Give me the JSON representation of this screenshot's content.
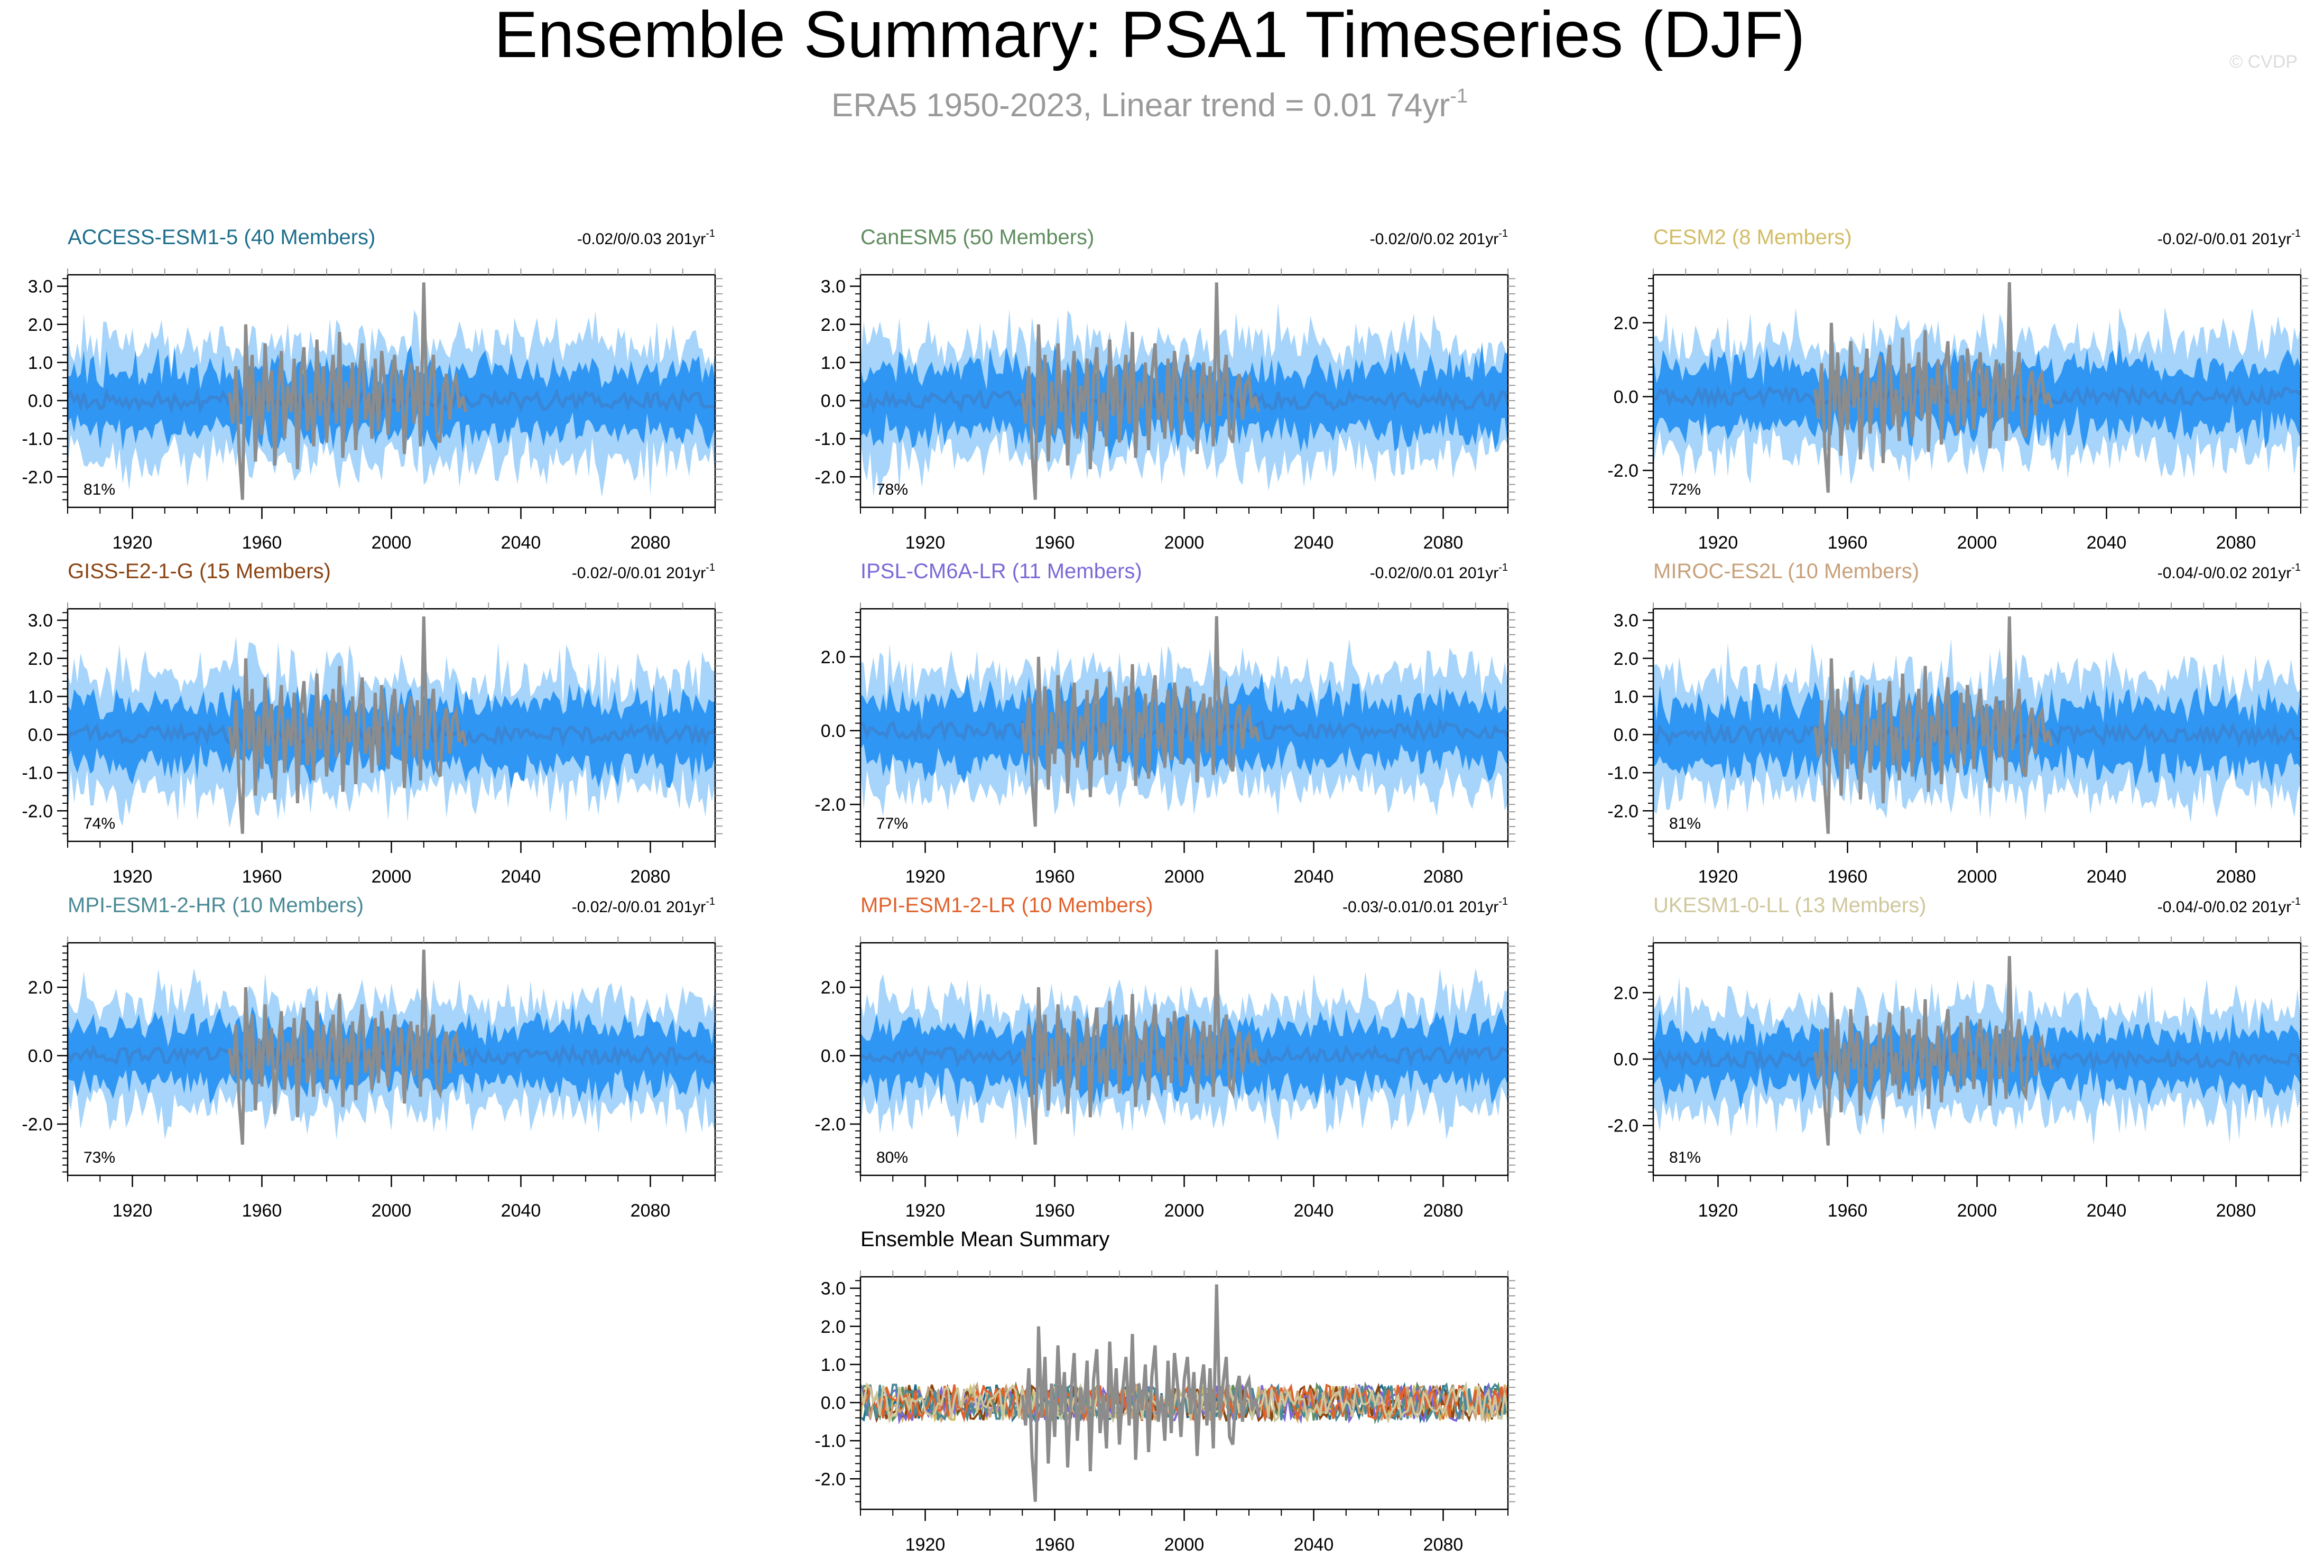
{
  "page": {
    "title": "Ensemble Summary: PSA1 Timeseries (DJF)",
    "subtitle_main": "ERA5 1950-2023, Linear trend = 0.01 74yr",
    "subtitle_sup": "-1",
    "watermark": "© CVDP"
  },
  "colors": {
    "outer_band": "#a6d4fa",
    "inner_band": "#2f96f3",
    "ens_mean": "#3a86d6",
    "observed": "#8c8c8c",
    "axis": "#000000"
  },
  "chart_data": [
    {
      "type": "area",
      "name": "ACCESS-ESM1-5",
      "title": "ACCESS-ESM1-5 (40 Members)",
      "title_color": "#1d6e8c",
      "trend_label": "-0.02/0/0.03 201yr",
      "trend_sup": "-1",
      "pct_label": "81%",
      "x_range": [
        1900,
        2100
      ],
      "xticks": [
        "1920",
        "1960",
        "2000",
        "2040",
        "2080"
      ],
      "ylim": [
        -2.8,
        3.3
      ],
      "yticks": [
        "3.0",
        "2.0",
        "1.0",
        "0.0",
        "-1.0",
        "-2.0"
      ]
    },
    {
      "type": "area",
      "name": "CanESM5",
      "title": "CanESM5 (50 Members)",
      "title_color": "#5e8c5e",
      "trend_label": "-0.02/0/0.02 201yr",
      "trend_sup": "-1",
      "pct_label": "78%",
      "x_range": [
        1900,
        2100
      ],
      "xticks": [
        "1920",
        "1960",
        "2000",
        "2040",
        "2080"
      ],
      "ylim": [
        -2.8,
        3.3
      ],
      "yticks": [
        "3.0",
        "2.0",
        "1.0",
        "0.0",
        "-1.0",
        "-2.0"
      ]
    },
    {
      "type": "area",
      "name": "CESM2",
      "title": "CESM2 (8 Members)",
      "title_color": "#d2bc64",
      "trend_label": "-0.02/-0/0.01 201yr",
      "trend_sup": "-1",
      "pct_label": "72%",
      "x_range": [
        1900,
        2100
      ],
      "xticks": [
        "1920",
        "1960",
        "2000",
        "2040",
        "2080"
      ],
      "ylim": [
        -3.0,
        3.3
      ],
      "yticks": [
        "2.0",
        "0.0",
        "-2.0"
      ]
    },
    {
      "type": "area",
      "name": "GISS-E2-1-G",
      "title": "GISS-E2-1-G (15 Members)",
      "title_color": "#8b4513",
      "trend_label": "-0.02/-0/0.01 201yr",
      "trend_sup": "-1",
      "pct_label": "74%",
      "x_range": [
        1900,
        2100
      ],
      "xticks": [
        "1920",
        "1960",
        "2000",
        "2040",
        "2080"
      ],
      "ylim": [
        -2.8,
        3.3
      ],
      "yticks": [
        "3.0",
        "2.0",
        "1.0",
        "0.0",
        "-1.0",
        "-2.0"
      ]
    },
    {
      "type": "area",
      "name": "IPSL-CM6A-LR",
      "title": "IPSL-CM6A-LR (11 Members)",
      "title_color": "#7b68d6",
      "trend_label": "-0.02/0/0.01 201yr",
      "trend_sup": "-1",
      "pct_label": "77%",
      "x_range": [
        1900,
        2100
      ],
      "xticks": [
        "1920",
        "1960",
        "2000",
        "2040",
        "2080"
      ],
      "ylim": [
        -3.0,
        3.3
      ],
      "yticks": [
        "2.0",
        "0.0",
        "-2.0"
      ]
    },
    {
      "type": "area",
      "name": "MIROC-ES2L",
      "title": "MIROC-ES2L (10 Members)",
      "title_color": "#c8a07a",
      "trend_label": "-0.04/-0/0.02 201yr",
      "trend_sup": "-1",
      "pct_label": "81%",
      "x_range": [
        1900,
        2100
      ],
      "xticks": [
        "1920",
        "1960",
        "2000",
        "2040",
        "2080"
      ],
      "ylim": [
        -2.8,
        3.3
      ],
      "yticks": [
        "3.0",
        "2.0",
        "1.0",
        "0.0",
        "-1.0",
        "-2.0"
      ]
    },
    {
      "type": "area",
      "name": "MPI-ESM1-2-HR",
      "title": "MPI-ESM1-2-HR (10 Members)",
      "title_color": "#4a8a96",
      "trend_label": "-0.02/-0/0.01 201yr",
      "trend_sup": "-1",
      "pct_label": "73%",
      "x_range": [
        1900,
        2100
      ],
      "xticks": [
        "1920",
        "1960",
        "2000",
        "2040",
        "2080"
      ],
      "ylim": [
        -3.5,
        3.3
      ],
      "yticks": [
        "2.0",
        "0.0",
        "-2.0"
      ]
    },
    {
      "type": "area",
      "name": "MPI-ESM1-2-LR",
      "title": "MPI-ESM1-2-LR (10 Members)",
      "title_color": "#e0622c",
      "trend_label": "-0.03/-0.01/0.01 201yr",
      "trend_sup": "-1",
      "pct_label": "80%",
      "x_range": [
        1900,
        2100
      ],
      "xticks": [
        "1920",
        "1960",
        "2000",
        "2040",
        "2080"
      ],
      "ylim": [
        -3.5,
        3.3
      ],
      "yticks": [
        "2.0",
        "0.0",
        "-2.0"
      ]
    },
    {
      "type": "area",
      "name": "UKESM1-0-LL",
      "title": "UKESM1-0-LL (13 Members)",
      "title_color": "#cfc79c",
      "trend_label": "-0.04/-0/0.02 201yr",
      "trend_sup": "-1",
      "pct_label": "81%",
      "x_range": [
        1900,
        2100
      ],
      "xticks": [
        "1920",
        "1960",
        "2000",
        "2040",
        "2080"
      ],
      "ylim": [
        -3.5,
        3.5
      ],
      "yticks": [
        "2.0",
        "0.0",
        "-2.0"
      ]
    },
    {
      "type": "line",
      "name": "Ensemble Mean Summary",
      "title": "Ensemble Mean Summary",
      "title_color": "#000000",
      "trend_label": "",
      "trend_sup": "",
      "pct_label": "",
      "x_range": [
        1900,
        2100
      ],
      "xticks": [
        "1920",
        "1960",
        "2000",
        "2040",
        "2080"
      ],
      "ylim": [
        -2.8,
        3.3
      ],
      "yticks": [
        "3.0",
        "2.0",
        "1.0",
        "0.0",
        "-1.0",
        "-2.0"
      ],
      "series_colors": [
        "#1d6e8c",
        "#5e8c5e",
        "#d2bc64",
        "#8b4513",
        "#7b68d6",
        "#c8a07a",
        "#4a8a96",
        "#e0622c",
        "#cfc79c"
      ]
    }
  ],
  "observed_ERA5": {
    "years": [
      1950,
      1951,
      1952,
      1953,
      1954,
      1955,
      1956,
      1957,
      1958,
      1959,
      1960,
      1961,
      1962,
      1963,
      1964,
      1965,
      1966,
      1967,
      1968,
      1969,
      1970,
      1971,
      1972,
      1973,
      1974,
      1975,
      1976,
      1977,
      1978,
      1979,
      1980,
      1981,
      1982,
      1983,
      1984,
      1985,
      1986,
      1987,
      1988,
      1989,
      1990,
      1991,
      1992,
      1993,
      1994,
      1995,
      1996,
      1997,
      1998,
      1999,
      2000,
      2001,
      2002,
      2003,
      2004,
      2005,
      2006,
      2007,
      2008,
      2009,
      2010,
      2011,
      2012,
      2013,
      2014,
      2015,
      2016,
      2017,
      2018,
      2019,
      2020,
      2021,
      2022,
      2023
    ],
    "values": [
      0.2,
      -0.6,
      0.9,
      -1.4,
      -2.6,
      2.0,
      -0.4,
      1.2,
      -1.6,
      0.5,
      -0.9,
      1.5,
      -0.3,
      0.8,
      -1.7,
      0.2,
      1.3,
      -1.0,
      0.4,
      -0.3,
      1.1,
      -1.8,
      0.6,
      1.4,
      -0.8,
      0.2,
      -1.2,
      1.6,
      -0.4,
      0.9,
      -1.1,
      0.3,
      1.2,
      -0.6,
      1.8,
      -1.5,
      0.5,
      -0.2,
      1.0,
      -1.3,
      0.7,
      1.5,
      -0.5,
      0.2,
      -1.0,
      1.1,
      -0.8,
      1.3,
      0.4,
      -0.9,
      0.6,
      1.2,
      -0.3,
      0.8,
      -1.4,
      0.3,
      1.0,
      -0.6,
      0.9,
      -1.2,
      3.1,
      -0.4,
      0.5,
      1.2,
      -0.9,
      -1.1,
      0.3,
      0.7,
      -0.5,
      0.4,
      0.6,
      -0.2,
      0.1,
      -0.3
    ]
  }
}
